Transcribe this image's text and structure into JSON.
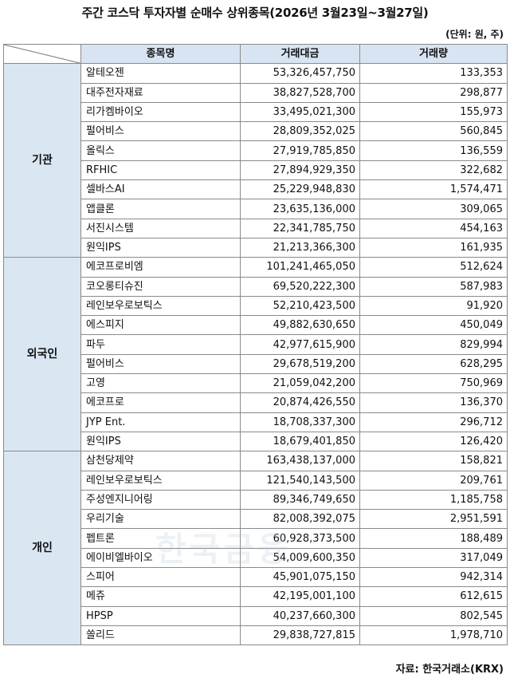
{
  "title": "주간 코스닥 투자자별 순매수 상위종목(2026년 3월23일~3월27일)",
  "unit": "(단위: 원, 주)",
  "headers": {
    "name": "종목명",
    "amount": "거래대금",
    "volume": "거래량"
  },
  "groups": [
    {
      "label": "기관",
      "rows": [
        {
          "name": "알테오젠",
          "amount": "53,326,457,750",
          "volume": "133,353"
        },
        {
          "name": "대주전자재료",
          "amount": "38,827,528,700",
          "volume": "298,877"
        },
        {
          "name": "리가켐바이오",
          "amount": "33,495,021,300",
          "volume": "155,973"
        },
        {
          "name": "펄어비스",
          "amount": "28,809,352,025",
          "volume": "560,845"
        },
        {
          "name": "올릭스",
          "amount": "27,919,785,850",
          "volume": "136,559"
        },
        {
          "name": "RFHIC",
          "amount": "27,894,929,350",
          "volume": "322,682"
        },
        {
          "name": "셀바스AI",
          "amount": "25,229,948,830",
          "volume": "1,574,471"
        },
        {
          "name": "앱클론",
          "amount": "23,635,136,000",
          "volume": "309,065"
        },
        {
          "name": "서진시스템",
          "amount": "22,341,785,750",
          "volume": "454,163"
        },
        {
          "name": "원익IPS",
          "amount": "21,213,366,300",
          "volume": "161,935"
        }
      ]
    },
    {
      "label": "외국인",
      "rows": [
        {
          "name": "에코프로비엠",
          "amount": "101,241,465,050",
          "volume": "512,624"
        },
        {
          "name": "코오롱티슈진",
          "amount": "69,520,222,300",
          "volume": "587,983"
        },
        {
          "name": "레인보우로보틱스",
          "amount": "52,210,423,500",
          "volume": "91,920"
        },
        {
          "name": "에스피지",
          "amount": "49,882,630,650",
          "volume": "450,049"
        },
        {
          "name": "파두",
          "amount": "42,977,615,900",
          "volume": "829,994"
        },
        {
          "name": "펄어비스",
          "amount": "29,678,519,200",
          "volume": "628,295"
        },
        {
          "name": "고영",
          "amount": "21,059,042,200",
          "volume": "750,969"
        },
        {
          "name": "에코프로",
          "amount": "20,874,426,550",
          "volume": "136,370"
        },
        {
          "name": "JYP Ent.",
          "amount": "18,708,337,300",
          "volume": "296,712"
        },
        {
          "name": "원익IPS",
          "amount": "18,679,401,850",
          "volume": "126,420"
        }
      ]
    },
    {
      "label": "개인",
      "rows": [
        {
          "name": "삼천당제약",
          "amount": "163,438,137,000",
          "volume": "158,821"
        },
        {
          "name": "레인보우로보틱스",
          "amount": "121,540,143,500",
          "volume": "209,761"
        },
        {
          "name": "주성엔지니어링",
          "amount": "89,346,749,650",
          "volume": "1,185,758"
        },
        {
          "name": "우리기술",
          "amount": "82,008,392,075",
          "volume": "2,951,591"
        },
        {
          "name": "펩트론",
          "amount": "60,928,373,500",
          "volume": "188,489"
        },
        {
          "name": "에이비엘바이오",
          "amount": "54,009,600,350",
          "volume": "317,049"
        },
        {
          "name": "스피어",
          "amount": "45,901,075,150",
          "volume": "942,314"
        },
        {
          "name": "메쥬",
          "amount": "42,195,001,100",
          "volume": "612,615"
        },
        {
          "name": "HPSP",
          "amount": "40,237,660,300",
          "volume": "802,545"
        },
        {
          "name": "쏠리드",
          "amount": "29,838,727,815",
          "volume": "1,978,710"
        }
      ]
    }
  ],
  "source": "자료: 한국거래소(KRX)",
  "watermark": "한국금융"
}
